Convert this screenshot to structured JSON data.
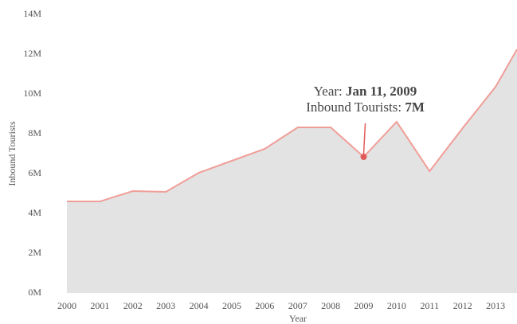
{
  "chart_data": {
    "type": "area",
    "x_label": "Year",
    "y_label": "Inbound Tourists",
    "x": [
      2000,
      2001,
      2002,
      2003,
      2004,
      2005,
      2006,
      2007,
      2008,
      2009,
      2010,
      2011,
      2012,
      2013,
      2013.65
    ],
    "series": [
      {
        "name": "Inbound Tourists",
        "color": "#f09e98",
        "fill": "#e3e3e3",
        "values": [
          4.6,
          4.6,
          5.12,
          5.08,
          6.04,
          6.64,
          7.24,
          8.32,
          8.32,
          6.84,
          8.6,
          6.12,
          8.28,
          10.36,
          12.24
        ]
      }
    ],
    "xlim": [
      2000,
      2013.65
    ],
    "xticks": [
      2000,
      2001,
      2002,
      2003,
      2004,
      2005,
      2006,
      2007,
      2008,
      2009,
      2010,
      2011,
      2012,
      2013
    ],
    "ylim": [
      0,
      14
    ],
    "yticks": [
      {
        "value": 0,
        "label": "0M"
      },
      {
        "value": 2,
        "label": "2M"
      },
      {
        "value": 4,
        "label": "4M"
      },
      {
        "value": 6,
        "label": "6M"
      },
      {
        "value": 8,
        "label": "8M"
      },
      {
        "value": 10,
        "label": "10M"
      },
      {
        "value": 12,
        "label": "12M"
      },
      {
        "value": 14,
        "label": "14M"
      }
    ],
    "grid": false,
    "tooltip": {
      "point": 9,
      "x_label": "Year:",
      "x_value": "Jan 11, 2009",
      "y_label": "Inbound Tourists:",
      "y_value": "7M",
      "color": "#e05a5a"
    }
  }
}
